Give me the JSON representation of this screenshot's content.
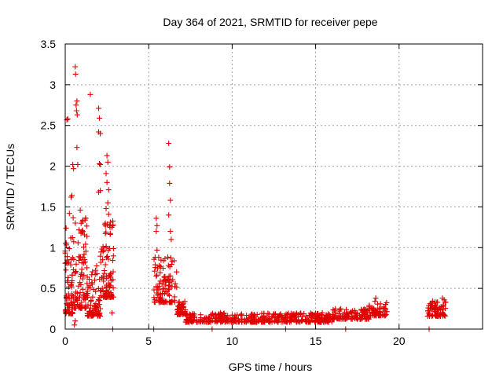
{
  "chart_data": {
    "type": "scatter",
    "title": "Day 364 of 2021, SRMTID for receiver pepe",
    "xlabel": "GPS time / hours",
    "ylabel": "SRMTID / TECUs",
    "xlim": [
      0,
      25
    ],
    "ylim": [
      0,
      3.5
    ],
    "xticks": [
      0,
      5,
      10,
      15,
      20
    ],
    "yticks": [
      0,
      0.5,
      1,
      1.5,
      2,
      2.5,
      3,
      3.5
    ],
    "grid": true,
    "marker": "+",
    "color": "#e00000",
    "series": [
      {
        "name": "SRMTID",
        "segments": [
          {
            "x0": 0.0,
            "x1": 0.45,
            "base": 0.4,
            "spread": 0.6,
            "density": 70
          },
          {
            "x0": 0.45,
            "x1": 1.3,
            "base": 0.5,
            "spread": 0.7,
            "density": 90
          },
          {
            "x0": 1.3,
            "x1": 2.1,
            "base": 0.3,
            "spread": 0.4,
            "density": 80
          },
          {
            "x0": 2.1,
            "x1": 2.9,
            "base": 0.6,
            "spread": 0.6,
            "density": 90
          },
          {
            "x0": 5.3,
            "x1": 6.7,
            "base": 0.45,
            "spread": 0.35,
            "density": 110
          },
          {
            "x0": 6.7,
            "x1": 7.2,
            "base": 0.22,
            "spread": 0.12,
            "density": 40
          },
          {
            "x0": 7.2,
            "x1": 16.0,
            "base": 0.11,
            "spread": 0.07,
            "density": 420
          },
          {
            "x0": 16.0,
            "x1": 18.2,
            "base": 0.15,
            "spread": 0.08,
            "density": 110
          },
          {
            "x0": 18.2,
            "x1": 19.3,
            "base": 0.2,
            "spread": 0.1,
            "density": 60
          },
          {
            "x0": 21.7,
            "x1": 22.8,
            "base": 0.2,
            "spread": 0.12,
            "density": 70
          }
        ],
        "peaks": [
          {
            "x": 0.1,
            "y": 2.57
          },
          {
            "x": 0.15,
            "y": 2.58
          },
          {
            "x": 0.05,
            "y": 1.24
          },
          {
            "x": 0.35,
            "y": 1.62
          },
          {
            "x": 0.4,
            "y": 1.64
          },
          {
            "x": 0.45,
            "y": 2.02
          },
          {
            "x": 0.5,
            "y": 1.97
          },
          {
            "x": 0.25,
            "y": 1.42
          },
          {
            "x": 0.6,
            "y": 3.22
          },
          {
            "x": 0.62,
            "y": 3.13
          },
          {
            "x": 0.65,
            "y": 2.75
          },
          {
            "x": 0.7,
            "y": 2.8
          },
          {
            "x": 0.68,
            "y": 2.68
          },
          {
            "x": 0.72,
            "y": 2.63
          },
          {
            "x": 0.7,
            "y": 2.23
          },
          {
            "x": 0.75,
            "y": 2.02
          },
          {
            "x": 0.9,
            "y": 1.46
          },
          {
            "x": 0.95,
            "y": 1.3
          },
          {
            "x": 1.05,
            "y": 1.2
          },
          {
            "x": 1.5,
            "y": 2.88
          },
          {
            "x": 2.0,
            "y": 2.71
          },
          {
            "x": 2.05,
            "y": 2.59
          },
          {
            "x": 2.0,
            "y": 2.42
          },
          {
            "x": 2.1,
            "y": 2.4
          },
          {
            "x": 2.05,
            "y": 2.03
          },
          {
            "x": 2.1,
            "y": 2.02
          },
          {
            "x": 2.0,
            "y": 1.68
          },
          {
            "x": 2.1,
            "y": 1.7
          },
          {
            "x": 2.5,
            "y": 2.13
          },
          {
            "x": 2.55,
            "y": 2.05
          },
          {
            "x": 2.45,
            "y": 1.91
          },
          {
            "x": 2.5,
            "y": 1.8
          },
          {
            "x": 2.6,
            "y": 1.71
          },
          {
            "x": 2.55,
            "y": 1.55
          },
          {
            "x": 2.45,
            "y": 1.48
          },
          {
            "x": 2.6,
            "y": 1.41
          },
          {
            "x": 2.4,
            "y": 1.3
          },
          {
            "x": 2.65,
            "y": 1.27
          },
          {
            "x": 2.8,
            "y": 0.2
          },
          {
            "x": 2.85,
            "y": 0.0
          },
          {
            "x": 0.55,
            "y": 0.05
          },
          {
            "x": 0.6,
            "y": 0.1
          },
          {
            "x": 6.2,
            "y": 2.28
          },
          {
            "x": 6.25,
            "y": 1.99
          },
          {
            "x": 6.25,
            "y": 1.79
          },
          {
            "x": 6.3,
            "y": 1.58
          },
          {
            "x": 6.2,
            "y": 1.4
          },
          {
            "x": 5.45,
            "y": 1.36
          },
          {
            "x": 5.5,
            "y": 1.27
          },
          {
            "x": 5.45,
            "y": 1.2
          },
          {
            "x": 6.3,
            "y": 1.2
          },
          {
            "x": 6.35,
            "y": 1.1
          },
          {
            "x": 5.5,
            "y": 0.97
          },
          {
            "x": 5.6,
            "y": 0.88
          },
          {
            "x": 5.3,
            "y": 0.0
          },
          {
            "x": 8.8,
            "y": 0.0
          },
          {
            "x": 13.2,
            "y": 0.0
          },
          {
            "x": 16.8,
            "y": 0.0
          },
          {
            "x": 21.8,
            "y": 0.0
          },
          {
            "x": 18.6,
            "y": 0.38
          },
          {
            "x": 18.55,
            "y": 0.34
          },
          {
            "x": 22.6,
            "y": 0.38
          },
          {
            "x": 22.7,
            "y": 0.36
          },
          {
            "x": 22.3,
            "y": 0.33
          },
          {
            "x": 9.3,
            "y": 0.2
          },
          {
            "x": 11.9,
            "y": 0.19
          },
          {
            "x": 15.4,
            "y": 0.2
          }
        ]
      }
    ]
  }
}
